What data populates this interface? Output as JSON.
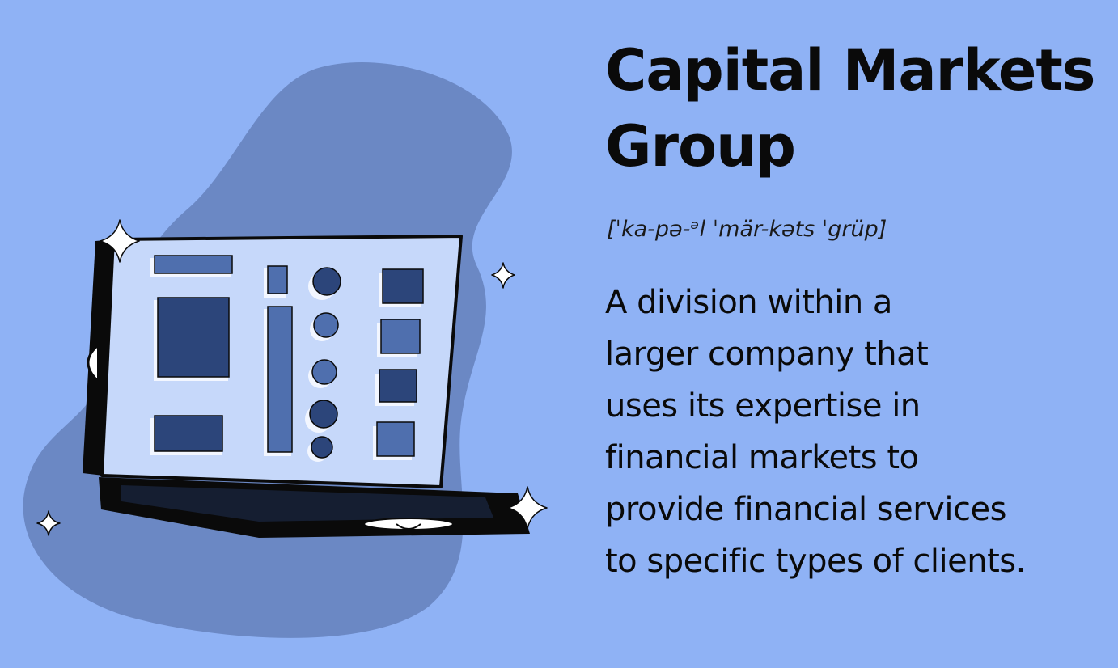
{
  "term": {
    "title": "Capital Markets\nGroup",
    "pronunciation": "[ˈka-pə-ᵊl ˈmär-kəts ˈgrüp]",
    "definition": "A division within a\nlarger company that\nuses its expertise in\nfinancial markets to\nprovide financial services\nto specific types of clients."
  },
  "colors": {
    "background": "#8fb2f5",
    "blob": "#6b88c4",
    "panel": "#c6d8fa",
    "dark_block": "#2c457a",
    "mid_block": "#4f6fae",
    "outline": "#0a0a0a"
  },
  "icons": [
    "briefcase-illustration",
    "sparkle-icon"
  ]
}
